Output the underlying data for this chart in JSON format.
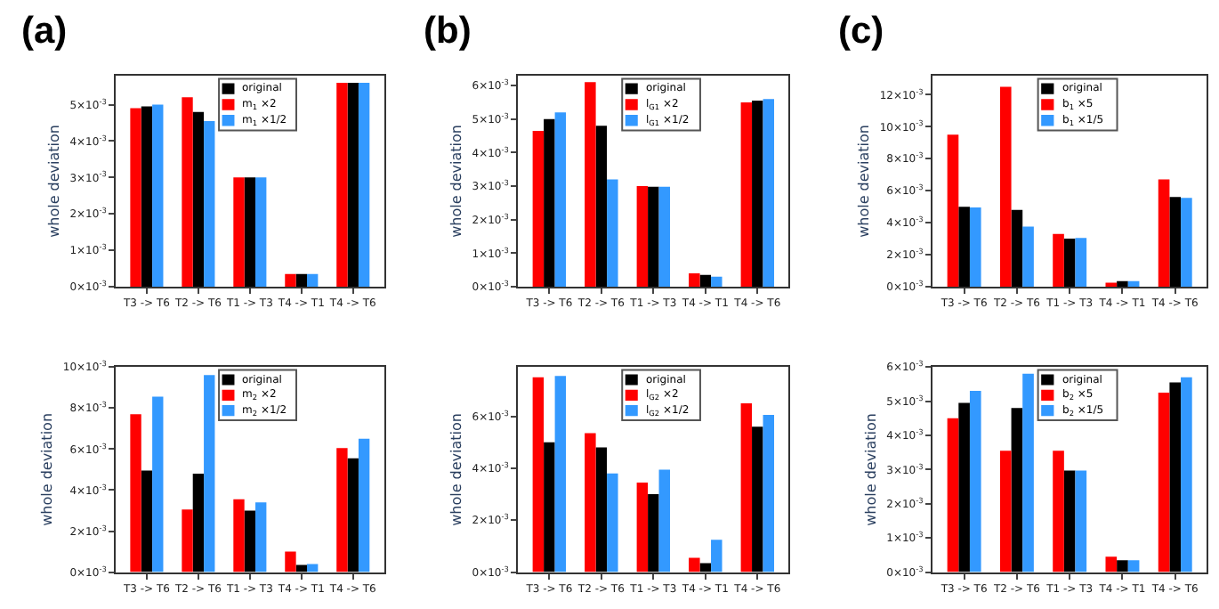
{
  "chart_data": [
    {
      "type": "bar",
      "title": "(a)",
      "ylabel": "whole deviation",
      "categories": [
        "T3 -> T6",
        "T2 -> T6",
        "T1 -> T3",
        "T4 -> T1",
        "T4 -> T6"
      ],
      "ylim": [
        0,
        0.0058
      ],
      "yticks": [
        {
          "value": 0,
          "label": "0×10$^{-3}$"
        },
        {
          "value": 0.001,
          "label": "1×10$^{-3}$"
        },
        {
          "value": 0.002,
          "label": "2×10$^{-3}$"
        },
        {
          "value": 0.003,
          "label": "3×10$^{-3}$"
        },
        {
          "value": 0.004,
          "label": "4×10$^{-3}$"
        },
        {
          "value": 0.005,
          "label": "5×10$^{-3}$"
        }
      ],
      "legend": "top",
      "series": [
        {
          "name": "original",
          "color": "#000000",
          "values": [
            0.00495,
            0.0048,
            0.003,
            0.00035,
            0.0056
          ]
        },
        {
          "name": "m$_{1}$ ×2",
          "color": "#ff0000",
          "values": [
            0.0049,
            0.0052,
            0.003,
            0.00035,
            0.0056
          ]
        },
        {
          "name": "m$_{1}$ ×1/2",
          "color": "#3399ff",
          "values": [
            0.005,
            0.00455,
            0.003,
            0.00035,
            0.0056
          ]
        }
      ]
    },
    {
      "type": "bar",
      "title": "(b)",
      "ylabel": "whole deviation",
      "categories": [
        "T3 -> T6",
        "T2 -> T6",
        "T1 -> T3",
        "T4 -> T1",
        "T4 -> T6"
      ],
      "ylim": [
        0,
        0.0063
      ],
      "yticks": [
        {
          "value": 0,
          "label": "0×10$^{-3}$"
        },
        {
          "value": 0.001,
          "label": "1×10$^{-3}$"
        },
        {
          "value": 0.002,
          "label": "2×10$^{-3}$"
        },
        {
          "value": 0.003,
          "label": "3×10$^{-3}$"
        },
        {
          "value": 0.004,
          "label": "4×10$^{-3}$"
        },
        {
          "value": 0.005,
          "label": "5×10$^{-3}$"
        },
        {
          "value": 0.006,
          "label": "6×10$^{-3}$"
        }
      ],
      "legend": "top",
      "series": [
        {
          "name": "original",
          "color": "#000000",
          "values": [
            0.005,
            0.0048,
            0.00298,
            0.00035,
            0.00555
          ]
        },
        {
          "name": "l$_{G1}$ ×2",
          "color": "#ff0000",
          "values": [
            0.00465,
            0.0061,
            0.003,
            0.0004,
            0.0055
          ]
        },
        {
          "name": "l$_{G1}$ ×1/2",
          "color": "#3399ff",
          "values": [
            0.0052,
            0.0032,
            0.00298,
            0.0003,
            0.0056
          ]
        }
      ]
    },
    {
      "type": "bar",
      "title": "(c)",
      "ylabel": "whole deviation",
      "categories": [
        "T3 -> T6",
        "T2 -> T6",
        "T1 -> T3",
        "T4 -> T1",
        "T4 -> T6"
      ],
      "ylim": [
        0,
        0.0132
      ],
      "yticks": [
        {
          "value": 0,
          "label": "0×10$^{-3}$"
        },
        {
          "value": 0.002,
          "label": "2×10$^{-3}$"
        },
        {
          "value": 0.004,
          "label": "4×10$^{-3}$"
        },
        {
          "value": 0.006,
          "label": "6×10$^{-3}$"
        },
        {
          "value": 0.008,
          "label": "8×10$^{-3}$"
        },
        {
          "value": 0.01,
          "label": "10×10$^{-3}$"
        },
        {
          "value": 0.012,
          "label": "12×10$^{-3}$"
        }
      ],
      "legend": "top",
      "series": [
        {
          "name": "original",
          "color": "#000000",
          "values": [
            0.005,
            0.0048,
            0.003,
            0.00035,
            0.0056
          ]
        },
        {
          "name": "b$_{1}$ ×5",
          "color": "#ff0000",
          "values": [
            0.0095,
            0.0125,
            0.0033,
            0.00025,
            0.0067
          ]
        },
        {
          "name": "b$_{1}$ ×1/5",
          "color": "#3399ff",
          "values": [
            0.00495,
            0.00375,
            0.00305,
            0.00035,
            0.00555
          ]
        }
      ]
    },
    {
      "type": "bar",
      "ylabel": "whole deviation",
      "categories": [
        "T3 -> T6",
        "T2 -> T6",
        "T1 -> T3",
        "T4 -> T1",
        "T4 -> T6"
      ],
      "ylim": [
        0,
        0.01
      ],
      "yticks": [
        {
          "value": 0,
          "label": "0×10$^{-3}$"
        },
        {
          "value": 0.002,
          "label": "2×10$^{-3}$"
        },
        {
          "value": 0.004,
          "label": "4×10$^{-3}$"
        },
        {
          "value": 0.006,
          "label": "6×10$^{-3}$"
        },
        {
          "value": 0.008,
          "label": "8×10$^{-3}$"
        },
        {
          "value": 0.01,
          "label": "10×10$^{-3}$"
        }
      ],
      "legend": "top",
      "series": [
        {
          "name": "original",
          "color": "#000000",
          "values": [
            0.00495,
            0.0048,
            0.003,
            0.00035,
            0.00555
          ]
        },
        {
          "name": "m$_{2}$ ×2",
          "color": "#ff0000",
          "values": [
            0.0077,
            0.00305,
            0.00355,
            0.001,
            0.00605
          ]
        },
        {
          "name": "m$_{2}$ ×1/2",
          "color": "#3399ff",
          "values": [
            0.00855,
            0.0096,
            0.0034,
            0.0004,
            0.0065
          ]
        }
      ]
    },
    {
      "type": "bar",
      "ylabel": "whole deviation",
      "categories": [
        "T3 -> T6",
        "T2 -> T6",
        "T1 -> T3",
        "T4 -> T1",
        "T4 -> T6"
      ],
      "ylim": [
        0,
        0.0079
      ],
      "yticks": [
        {
          "value": 0,
          "label": "0×10$^{-3}$"
        },
        {
          "value": 0.002,
          "label": "2×10$^{-3}$"
        },
        {
          "value": 0.004,
          "label": "4×10$^{-3}$"
        },
        {
          "value": 0.006,
          "label": "6×10$^{-3}$"
        }
      ],
      "legend": "top",
      "series": [
        {
          "name": "original",
          "color": "#000000",
          "values": [
            0.005,
            0.0048,
            0.003,
            0.00035,
            0.0056
          ]
        },
        {
          "name": "l$_{G2}$ ×2",
          "color": "#ff0000",
          "values": [
            0.0075,
            0.00535,
            0.00345,
            0.00055,
            0.0065
          ]
        },
        {
          "name": "l$_{G2}$ ×1/2",
          "color": "#3399ff",
          "values": [
            0.00755,
            0.0038,
            0.00395,
            0.00125,
            0.00605
          ]
        }
      ]
    },
    {
      "type": "bar",
      "ylabel": "whole deviation",
      "categories": [
        "T3 -> T6",
        "T2 -> T6",
        "T1 -> T3",
        "T4 -> T1",
        "T4 -> T6"
      ],
      "ylim": [
        0,
        0.006
      ],
      "yticks": [
        {
          "value": 0,
          "label": "0×10$^{-3}$"
        },
        {
          "value": 0.001,
          "label": "1×10$^{-3}$"
        },
        {
          "value": 0.002,
          "label": "2×10$^{-3}$"
        },
        {
          "value": 0.003,
          "label": "3×10$^{-3}$"
        },
        {
          "value": 0.004,
          "label": "4×10$^{-3}$"
        },
        {
          "value": 0.005,
          "label": "5×10$^{-3}$"
        },
        {
          "value": 0.006,
          "label": "6×10$^{-3}$"
        }
      ],
      "legend": "top",
      "series": [
        {
          "name": "original",
          "color": "#000000",
          "values": [
            0.00495,
            0.0048,
            0.00297,
            0.00035,
            0.00555
          ]
        },
        {
          "name": "b$_{2}$ ×5",
          "color": "#ff0000",
          "values": [
            0.0045,
            0.00355,
            0.00355,
            0.00045,
            0.00525
          ]
        },
        {
          "name": "b$_{2}$ ×1/5",
          "color": "#3399ff",
          "values": [
            0.0053,
            0.0058,
            0.00297,
            0.00035,
            0.0057
          ]
        }
      ]
    }
  ]
}
